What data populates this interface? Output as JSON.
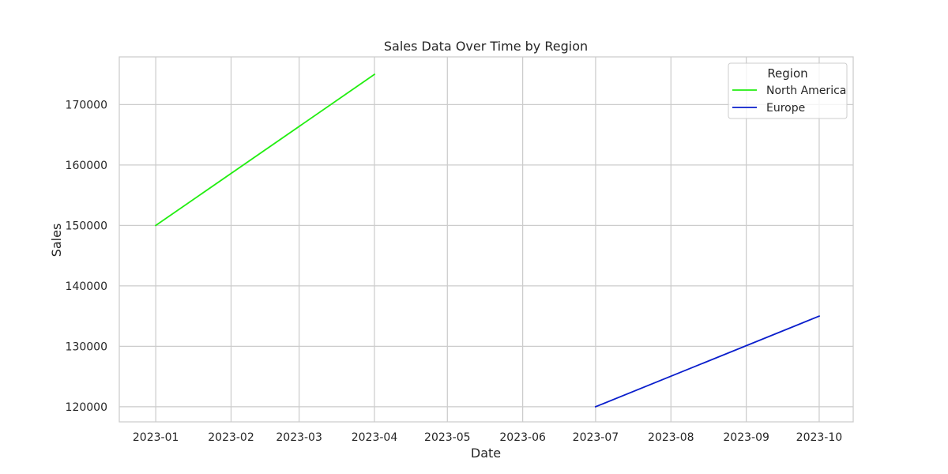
{
  "chart_data": {
    "type": "line",
    "title": "Sales Data Over Time by Region",
    "xlabel": "Date",
    "ylabel": "Sales",
    "x_ticks": [
      "2023-01",
      "2023-02",
      "2023-03",
      "2023-04",
      "2023-05",
      "2023-06",
      "2023-07",
      "2023-08",
      "2023-09",
      "2023-10"
    ],
    "y_ticks": [
      120000,
      130000,
      140000,
      150000,
      160000,
      170000
    ],
    "xlim": [
      "2022-12-17",
      "2023-10-15"
    ],
    "ylim": [
      117500,
      177900
    ],
    "grid": true,
    "legend": {
      "title": "Region",
      "placement": "top-right"
    },
    "series": [
      {
        "name": "North America",
        "color": "#22ee11",
        "points": [
          {
            "x": "2023-01-01",
            "y": 150000
          },
          {
            "x": "2023-04-01",
            "y": 175000
          }
        ]
      },
      {
        "name": "Europe",
        "color": "#0a1ecc",
        "points": [
          {
            "x": "2023-07-01",
            "y": 120000
          },
          {
            "x": "2023-10-01",
            "y": 135000
          }
        ]
      }
    ]
  }
}
